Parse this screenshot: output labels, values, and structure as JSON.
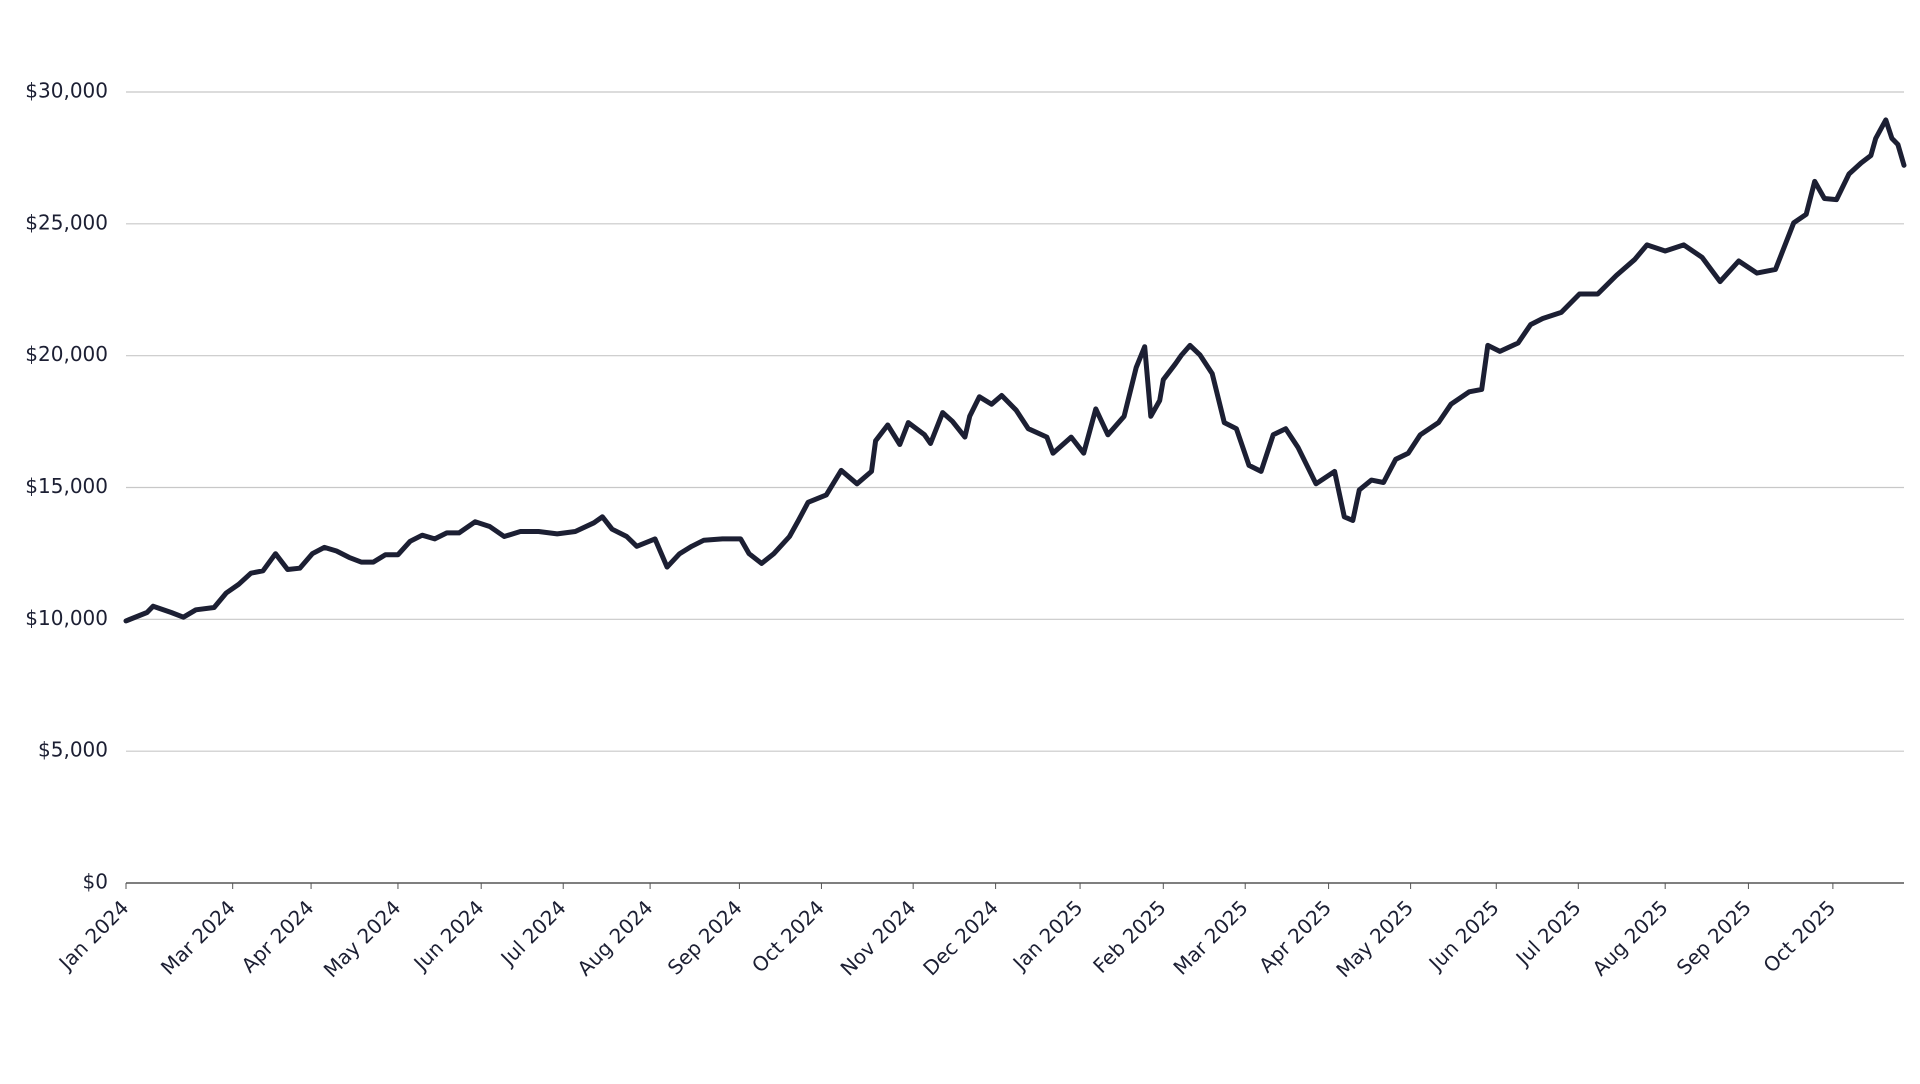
{
  "chart_data": {
    "type": "line",
    "color": "#1c1f33",
    "grid": true,
    "x": [
      0,
      5.2,
      6.7,
      11.2,
      14.2,
      17.3,
      21.8,
      24.8,
      27.9,
      30.9,
      33.9,
      37.0,
      40.0,
      43.0,
      46.1,
      49.1,
      52.1,
      55.2,
      58.2,
      61.2,
      64.2,
      67.3,
      70.3,
      73.3,
      76.4,
      79.4,
      82.4,
      86.4,
      90.0,
      93.6,
      97.6,
      102.1,
      106.7,
      111.2,
      115.8,
      117.9,
      120.3,
      123.9,
      126.4,
      130.9,
      133.9,
      137.0,
      140.0,
      143.0,
      147.6,
      152.1,
      154.2,
      157.3,
      160.3,
      164.2,
      166.4,
      168.8,
      173.3,
      177.0,
      180.9,
      184.5,
      185.5,
      188.5,
      191.5,
      193.6,
      197.6,
      199.1,
      202.1,
      204.5,
      207.6,
      208.8,
      211.2,
      214.2,
      216.7,
      220.3,
      223.3,
      227.9,
      229.4,
      233.9,
      237.0,
      240.0,
      243.0,
      247.0,
      250.0,
      252.1,
      253.6,
      255.8,
      256.7,
      259.7,
      261.2,
      263.3,
      265.8,
      268.8,
      271.8,
      274.8,
      277.9,
      280.9,
      283.9,
      287.0,
      290.0,
      294.5,
      299.1,
      301.5,
      303.6,
      305.2,
      308.2,
      311.2,
      314.2,
      317.3,
      320.3,
      324.8,
      327.9,
      332.4,
      335.5,
      337.0,
      340.0,
      344.5,
      347.6,
      350.6,
      355.2,
      359.7,
      364.2,
      368.8,
      373.3,
      376.4,
      380.9,
      385.5,
      390.0,
      394.5,
      399.1,
      403.6,
      408.2,
      412.7,
      415.8,
      417.9,
      420.3,
      423.3,
      426.4,
      429.4,
      431.8,
      433.0,
      435.5,
      437.0,
      438.5,
      440.0
    ],
    "values": [
      9940,
      10260,
      10500,
      10260,
      10080,
      10360,
      10450,
      11000,
      11330,
      11750,
      11840,
      12490,
      11890,
      11940,
      12490,
      12730,
      12590,
      12350,
      12170,
      12170,
      12450,
      12450,
      12960,
      13190,
      13050,
      13280,
      13280,
      13700,
      13520,
      13140,
      13330,
      13330,
      13240,
      13330,
      13660,
      13890,
      13420,
      13140,
      12770,
      13050,
      11980,
      12490,
      12770,
      13000,
      13050,
      13050,
      12490,
      12120,
      12490,
      13140,
      13750,
      14440,
      14720,
      15650,
      15140,
      15610,
      16770,
      17370,
      16630,
      17460,
      17000,
      16670,
      17840,
      17510,
      16910,
      17700,
      18440,
      18160,
      18490,
      17930,
      17230,
      16910,
      16300,
      16910,
      16300,
      17980,
      17000,
      17700,
      19550,
      20340,
      17700,
      18300,
      19090,
      19690,
      20020,
      20390,
      20020,
      19320,
      17460,
      17230,
      15840,
      15610,
      17000,
      17230,
      16530,
      15140,
      15610,
      13890,
      13750,
      14910,
      15280,
      15190,
      16070,
      16300,
      17000,
      17460,
      18160,
      18630,
      18720,
      20390,
      20160,
      20480,
      21180,
      21410,
      21640,
      22340,
      22340,
      23040,
      23640,
      24200,
      23970,
      24200,
      23730,
      22810,
      23590,
      23130,
      23270,
      25040,
      25360,
      26610,
      25960,
      25920,
      26890,
      27310,
      27590,
      28240,
      28940,
      28240,
      28010,
      27220
    ],
    "xlim": [
      0,
      440
    ],
    "xticks": [
      {
        "value": 0,
        "label": "Jan 2024"
      },
      {
        "value": 26.4,
        "label": "Mar 2024"
      },
      {
        "value": 45.8,
        "label": "Apr 2024"
      },
      {
        "value": 67.3,
        "label": "May 2024"
      },
      {
        "value": 87.9,
        "label": "Jun 2024"
      },
      {
        "value": 108.2,
        "label": "Jul 2024"
      },
      {
        "value": 129.7,
        "label": "Aug 2024"
      },
      {
        "value": 151.8,
        "label": "Sep 2024"
      },
      {
        "value": 172.1,
        "label": "Oct 2024"
      },
      {
        "value": 194.8,
        "label": "Nov 2024"
      },
      {
        "value": 215.2,
        "label": "Dec 2024"
      },
      {
        "value": 236.1,
        "label": "Jan 2025"
      },
      {
        "value": 256.7,
        "label": "Feb 2025"
      },
      {
        "value": 276.97,
        "label": "Mar 2025"
      },
      {
        "value": 297.6,
        "label": "Apr 2025"
      },
      {
        "value": 317.9,
        "label": "May 2025"
      },
      {
        "value": 339.1,
        "label": "Jun 2025"
      },
      {
        "value": 359.4,
        "label": "Jul 2025"
      },
      {
        "value": 380.9,
        "label": "Aug 2025"
      },
      {
        "value": 401.5,
        "label": "Sep 2025"
      },
      {
        "value": 422.4,
        "label": "Oct 2025"
      }
    ],
    "ylim": [
      0,
      30000
    ],
    "yticks": [
      {
        "value": 0,
        "label": "$0"
      },
      {
        "value": 5000,
        "label": "$5,000"
      },
      {
        "value": 10000,
        "label": "$10,000"
      },
      {
        "value": 15000,
        "label": "$15,000"
      },
      {
        "value": 20000,
        "label": "$20,000"
      },
      {
        "value": 25000,
        "label": "$25,000"
      },
      {
        "value": 30000,
        "label": "$30,000"
      }
    ]
  }
}
